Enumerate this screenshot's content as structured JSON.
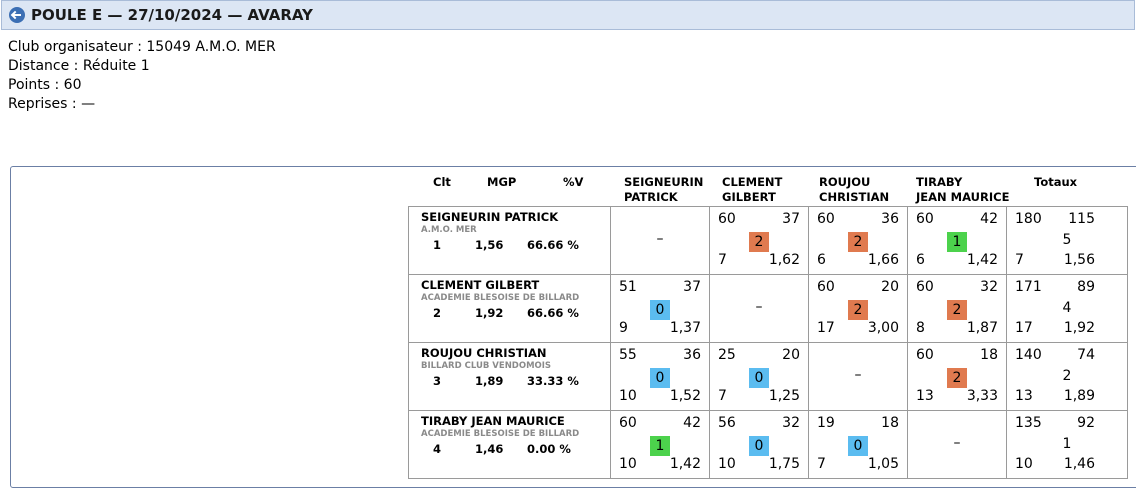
{
  "header": {
    "title": "POULE E — 27/10/2024 — AVARAY"
  },
  "info": {
    "club": "Club organisateur : 15049 A.M.O. MER",
    "distance": "Distance : Réduite 1",
    "points": "Points : 60",
    "reprises": "Reprises : —"
  },
  "columns": {
    "clt": "Clt",
    "mgp": "MGP",
    "pv": "%V",
    "p1": [
      "SEIGNEURIN",
      "PATRICK"
    ],
    "p2": [
      "CLEMENT",
      "GILBERT"
    ],
    "p3": [
      "ROUJOU",
      "CHRISTIAN"
    ],
    "p4": [
      "TIRABY",
      "JEAN MAURICE"
    ],
    "totaux": "Totaux"
  },
  "dash": "–",
  "players": [
    {
      "name": "SEIGNEURIN PATRICK",
      "club": "A.M.O. MER",
      "clt": "1",
      "mgp": "1,56",
      "pct": "66.66 %",
      "matches": [
        null,
        {
          "pts": "60",
          "serie": "37",
          "badge": "2",
          "reprises": "7",
          "moy": "1,62"
        },
        {
          "pts": "60",
          "serie": "36",
          "badge": "2",
          "reprises": "6",
          "moy": "1,66"
        },
        {
          "pts": "60",
          "serie": "42",
          "badge": "1",
          "reprises": "6",
          "moy": "1,42"
        }
      ],
      "totals": {
        "pts": "180",
        "serie": "115",
        "mp": "5",
        "reprises": "7",
        "moy": "1,56"
      }
    },
    {
      "name": "CLEMENT GILBERT",
      "club": "ACADEMIE BLESOISE DE BILLARD",
      "clt": "2",
      "mgp": "1,92",
      "pct": "66.66 %",
      "matches": [
        {
          "pts": "51",
          "serie": "37",
          "badge": "0",
          "reprises": "9",
          "moy": "1,37"
        },
        null,
        {
          "pts": "60",
          "serie": "20",
          "badge": "2",
          "reprises": "17",
          "moy": "3,00"
        },
        {
          "pts": "60",
          "serie": "32",
          "badge": "2",
          "reprises": "8",
          "moy": "1,87"
        }
      ],
      "totals": {
        "pts": "171",
        "serie": "89",
        "mp": "4",
        "reprises": "17",
        "moy": "1,92"
      }
    },
    {
      "name": "ROUJOU CHRISTIAN",
      "club": "BILLARD CLUB VENDOMOIS",
      "clt": "3",
      "mgp": "1,89",
      "pct": "33.33 %",
      "matches": [
        {
          "pts": "55",
          "serie": "36",
          "badge": "0",
          "reprises": "10",
          "moy": "1,52"
        },
        {
          "pts": "25",
          "serie": "20",
          "badge": "0",
          "reprises": "7",
          "moy": "1,25"
        },
        null,
        {
          "pts": "60",
          "serie": "18",
          "badge": "2",
          "reprises": "13",
          "moy": "3,33"
        }
      ],
      "totals": {
        "pts": "140",
        "serie": "74",
        "mp": "2",
        "reprises": "13",
        "moy": "1,89"
      }
    },
    {
      "name": "TIRABY JEAN MAURICE",
      "club": "ACADEMIE BLESOISE DE BILLARD",
      "clt": "4",
      "mgp": "1,46",
      "pct": "0.00 %",
      "matches": [
        {
          "pts": "60",
          "serie": "42",
          "badge": "1",
          "reprises": "10",
          "moy": "1,42"
        },
        {
          "pts": "56",
          "serie": "32",
          "badge": "0",
          "reprises": "10",
          "moy": "1,75"
        },
        {
          "pts": "19",
          "serie": "18",
          "badge": "0",
          "reprises": "7",
          "moy": "1,05"
        },
        null
      ],
      "totals": {
        "pts": "135",
        "serie": "92",
        "mp": "1",
        "reprises": "10",
        "moy": "1,46"
      }
    }
  ],
  "colors": {
    "badge_win": "#e07a4f",
    "badge_draw": "#4cd24c",
    "badge_loss": "#5bbcf0"
  }
}
